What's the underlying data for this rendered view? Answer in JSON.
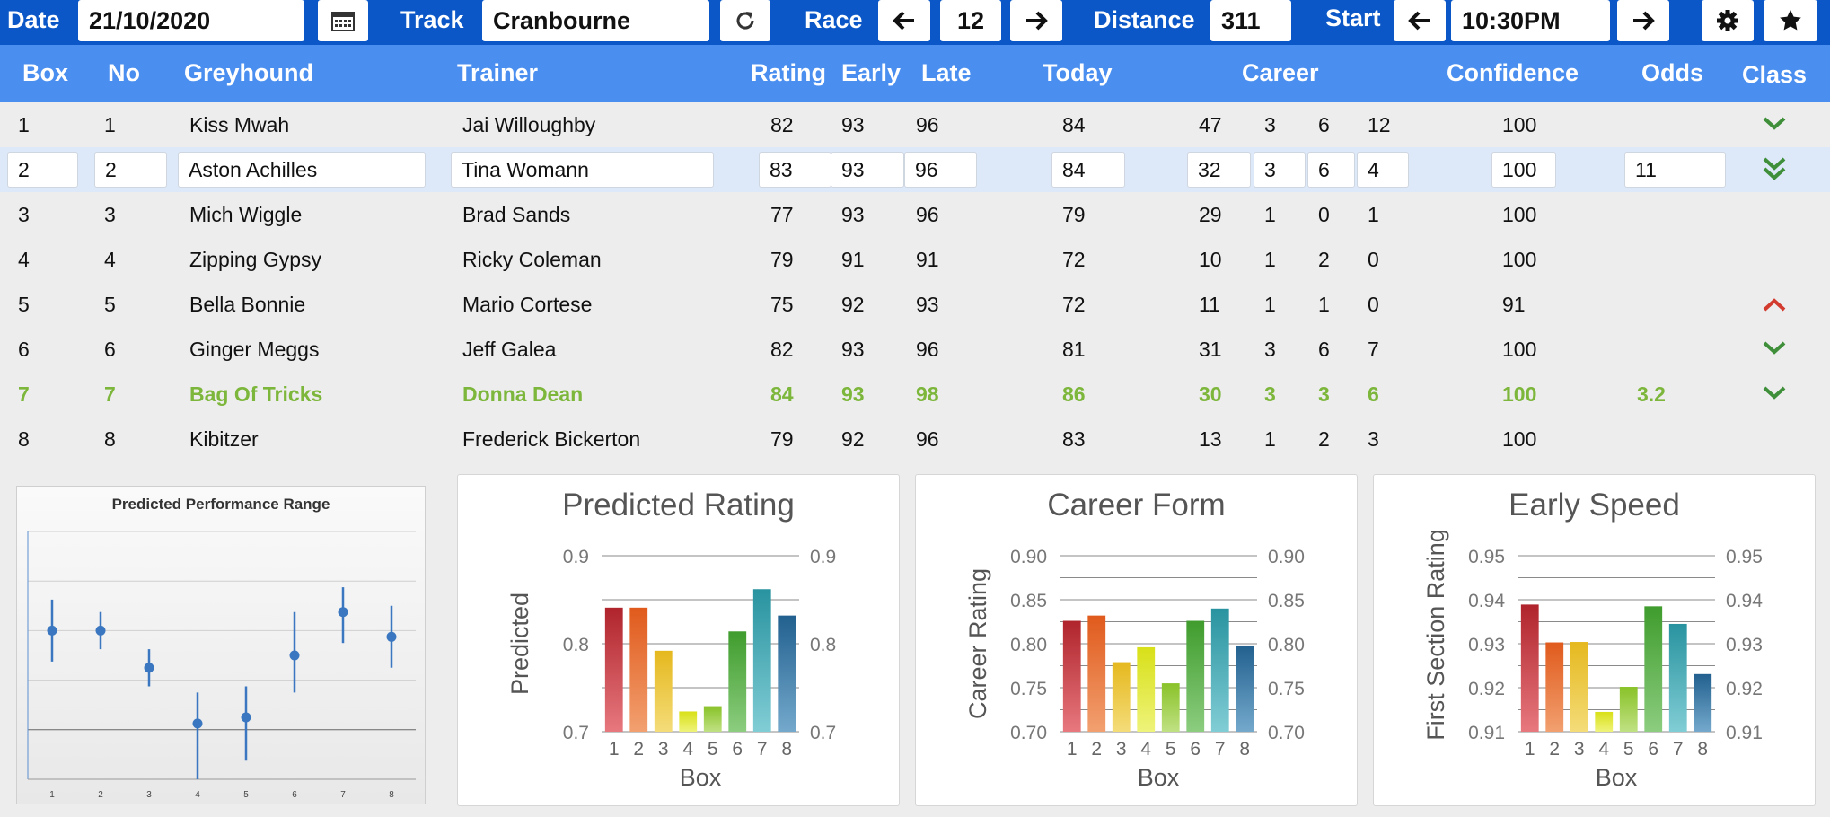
{
  "toolbar": {
    "date_label": "Date",
    "date_value": "21/10/2020",
    "track_label": "Track",
    "track_value": "Cranbourne",
    "race_label": "Race",
    "race_value": "12",
    "distance_label": "Distance",
    "distance_value": "311",
    "start_label": "Start",
    "start_value": "10:30PM",
    "icons": [
      "calendar-icon",
      "refresh-icon",
      "arrow-left-icon",
      "arrow-right-icon",
      "gear-icon",
      "star-icon"
    ]
  },
  "table": {
    "headers": {
      "box": "Box",
      "no": "No",
      "greyhound": "Greyhound",
      "trainer": "Trainer",
      "rating": "Rating",
      "early": "Early",
      "late": "Late",
      "today": "Today",
      "career": "Career",
      "confidence": "Confidence",
      "odds": "Odds",
      "class": "Class"
    },
    "rows": [
      {
        "box": "1",
        "no": "1",
        "greyhound": "Kiss Mwah",
        "trainer": "Jai Willoughby",
        "rating": "82",
        "early": "93",
        "late": "96",
        "today": "84",
        "c1": "47",
        "c2": "3",
        "c3": "6",
        "c4": "12",
        "confidence": "100",
        "odds": "",
        "class_icon": "chevron-down-icon"
      },
      {
        "box": "2",
        "no": "2",
        "greyhound": "Aston Achilles",
        "trainer": "Tina Womann",
        "rating": "83",
        "early": "93",
        "late": "96",
        "today": "84",
        "c1": "32",
        "c2": "3",
        "c3": "6",
        "c4": "4",
        "confidence": "100",
        "odds": "11",
        "class_icon": "double-chevron-down-icon"
      },
      {
        "box": "3",
        "no": "3",
        "greyhound": "Mich Wiggle",
        "trainer": "Brad Sands",
        "rating": "77",
        "early": "93",
        "late": "96",
        "today": "79",
        "c1": "29",
        "c2": "1",
        "c3": "0",
        "c4": "1",
        "confidence": "100",
        "odds": "",
        "class_icon": ""
      },
      {
        "box": "4",
        "no": "4",
        "greyhound": "Zipping Gypsy",
        "trainer": "Ricky Coleman",
        "rating": "79",
        "early": "91",
        "late": "91",
        "today": "72",
        "c1": "10",
        "c2": "1",
        "c3": "2",
        "c4": "0",
        "confidence": "100",
        "odds": "",
        "class_icon": ""
      },
      {
        "box": "5",
        "no": "5",
        "greyhound": "Bella Bonnie",
        "trainer": "Mario Cortese",
        "rating": "75",
        "early": "92",
        "late": "93",
        "today": "72",
        "c1": "11",
        "c2": "1",
        "c3": "1",
        "c4": "0",
        "confidence": "91",
        "odds": "",
        "class_icon": "chevron-up-icon"
      },
      {
        "box": "6",
        "no": "6",
        "greyhound": "Ginger Meggs",
        "trainer": "Jeff Galea",
        "rating": "82",
        "early": "93",
        "late": "96",
        "today": "81",
        "c1": "31",
        "c2": "3",
        "c3": "6",
        "c4": "7",
        "confidence": "100",
        "odds": "",
        "class_icon": "chevron-down-icon"
      },
      {
        "box": "7",
        "no": "7",
        "greyhound": "Bag Of Tricks",
        "trainer": "Donna Dean",
        "rating": "84",
        "early": "93",
        "late": "98",
        "today": "86",
        "c1": "30",
        "c2": "3",
        "c3": "3",
        "c4": "6",
        "confidence": "100",
        "odds": "3.2",
        "class_icon": "chevron-down-icon"
      },
      {
        "box": "8",
        "no": "8",
        "greyhound": "Kibitzer",
        "trainer": "Frederick Bickerton",
        "rating": "79",
        "early": "92",
        "late": "96",
        "today": "83",
        "c1": "13",
        "c2": "1",
        "c3": "2",
        "c4": "3",
        "confidence": "100",
        "odds": "",
        "class_icon": ""
      }
    ],
    "selected_row": 1,
    "highlight_row": 6
  },
  "colors": {
    "toolbar_bg": "#0b57c8",
    "header_bg": "#4a8ff0",
    "selected_row_bg": "#dde8f8",
    "highlight_text": "#7cb63a",
    "class_down": "#3f8f3a",
    "class_up": "#d23b2e"
  },
  "chart_data": [
    {
      "type": "scatter",
      "title": "Predicted Performance Range",
      "x": [
        1,
        2,
        3,
        4,
        5,
        6,
        7,
        8
      ],
      "values": [
        0.82,
        0.82,
        0.79,
        0.745,
        0.75,
        0.8,
        0.835,
        0.815
      ],
      "low": [
        0.795,
        0.805,
        0.775,
        0.7,
        0.715,
        0.77,
        0.81,
        0.79
      ],
      "high": [
        0.845,
        0.835,
        0.805,
        0.77,
        0.775,
        0.835,
        0.855,
        0.84
      ],
      "ylim": [
        0.7,
        0.9
      ],
      "grid": true,
      "xlabel": "",
      "ylabel": ""
    },
    {
      "type": "bar",
      "title": "Predicted Rating",
      "categories": [
        "1",
        "2",
        "3",
        "4",
        "5",
        "6",
        "7",
        "8"
      ],
      "values": [
        0.841,
        0.841,
        0.792,
        0.723,
        0.729,
        0.814,
        0.862,
        0.832
      ],
      "ylim": [
        0.7,
        0.9
      ],
      "yticks": [
        "0.7",
        "0.8",
        "0.9"
      ],
      "xlabel": "Box",
      "ylabel": "Predicted",
      "grid": true
    },
    {
      "type": "bar",
      "title": "Career Form",
      "categories": [
        "1",
        "2",
        "3",
        "4",
        "5",
        "6",
        "7",
        "8"
      ],
      "values": [
        0.826,
        0.832,
        0.779,
        0.796,
        0.755,
        0.826,
        0.84,
        0.798
      ],
      "ylim": [
        0.7,
        0.9
      ],
      "yticks": [
        "0.70",
        "0.75",
        "0.80",
        "0.85",
        "0.90"
      ],
      "xlabel": "Box",
      "ylabel": "Career Rating",
      "grid": true
    },
    {
      "type": "bar",
      "title": "Early Speed",
      "categories": [
        "1",
        "2",
        "3",
        "4",
        "5",
        "6",
        "7",
        "8"
      ],
      "values": [
        0.9389,
        0.9303,
        0.9304,
        0.9145,
        0.9202,
        0.9385,
        0.9345,
        0.9231
      ],
      "ylim": [
        0.91,
        0.95
      ],
      "yticks": [
        "0.91",
        "0.92",
        "0.93",
        "0.94",
        "0.95"
      ],
      "xlabel": "Box",
      "ylabel": "First Section Rating",
      "grid": true
    }
  ]
}
